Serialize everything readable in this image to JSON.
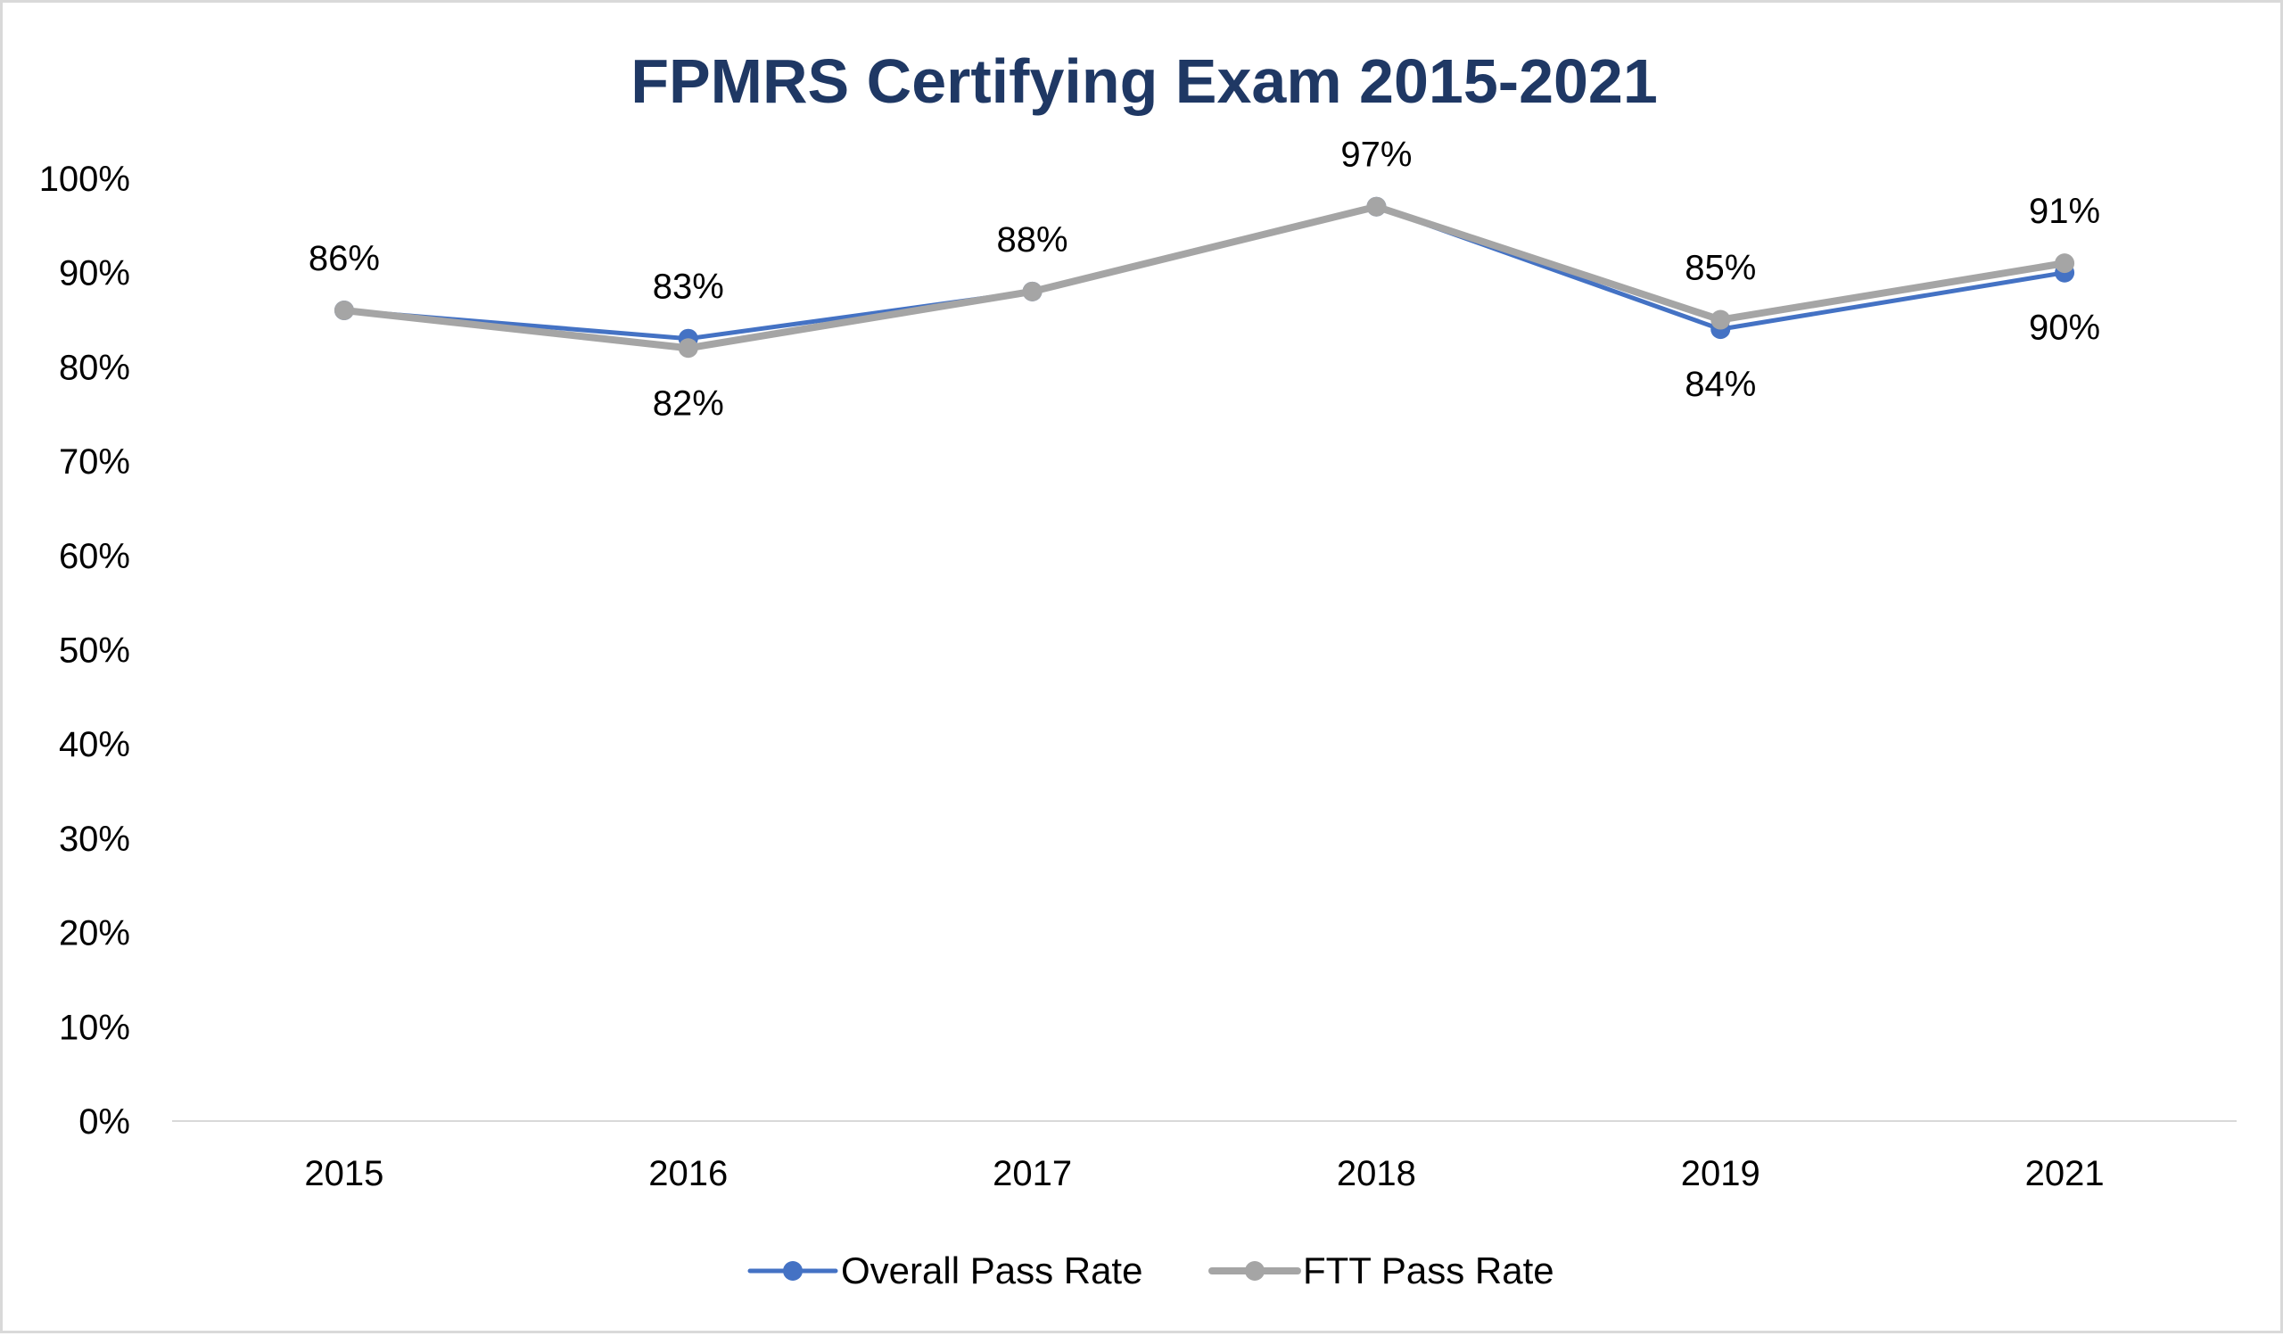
{
  "chart_data": {
    "type": "line",
    "title": "FPMRS Certifying Exam 2015-2021",
    "xlabel": "",
    "ylabel": "",
    "categories": [
      "2015",
      "2016",
      "2017",
      "2018",
      "2019",
      "2021"
    ],
    "ylim": [
      0,
      100
    ],
    "y_ticks": [
      "0%",
      "10%",
      "20%",
      "30%",
      "40%",
      "50%",
      "60%",
      "70%",
      "80%",
      "90%",
      "100%"
    ],
    "grid": false,
    "legend_position": "bottom",
    "series": [
      {
        "name": "Overall Pass Rate",
        "color": "#4472c4",
        "values": [
          86,
          83,
          88,
          97,
          84,
          90
        ],
        "labels": [
          "86%",
          "83%",
          "88%",
          "97%",
          "84%",
          "90%"
        ]
      },
      {
        "name": "FTT Pass Rate",
        "color": "#a5a5a5",
        "values": [
          86,
          82,
          88,
          97,
          85,
          91
        ],
        "labels": [
          "86%",
          "82%",
          "88%",
          "97%",
          "85%",
          "91%"
        ]
      }
    ]
  }
}
